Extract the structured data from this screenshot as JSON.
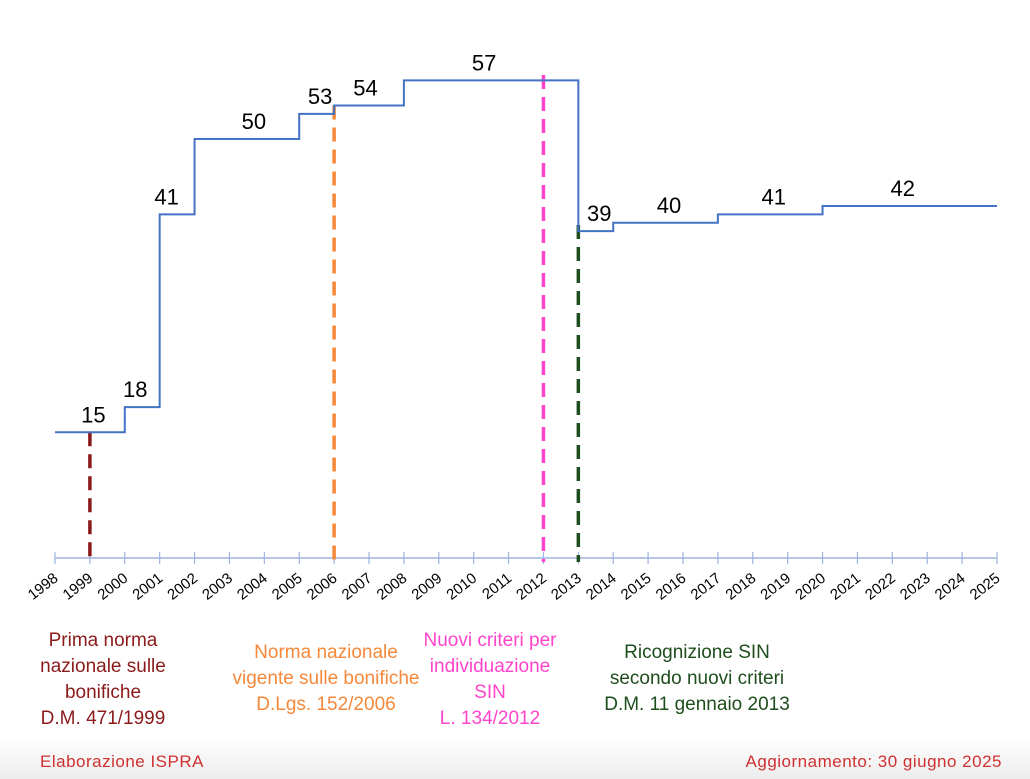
{
  "chart_data": {
    "type": "line",
    "step": true,
    "x_categories": [
      "1998",
      "1999",
      "2000",
      "2001",
      "2002",
      "2003",
      "2004",
      "2005",
      "2006",
      "2007",
      "2008",
      "2009",
      "2010",
      "2011",
      "2012",
      "2013",
      "2014",
      "2015",
      "2016",
      "2017",
      "2018",
      "2019",
      "2020",
      "2021",
      "2022",
      "2023",
      "2024",
      "2025"
    ],
    "xlim": [
      1998,
      2025
    ],
    "ylim": [
      0,
      60
    ],
    "grid": false,
    "line_color": "#4472c4",
    "steps": [
      {
        "from": 1998,
        "to": 2000,
        "value": 15,
        "label_at": 1999.1
      },
      {
        "from": 2000,
        "to": 2001,
        "value": 18,
        "label_at": 2000.3
      },
      {
        "from": 2001,
        "to": 2002,
        "value": 41,
        "label_at": 2001.2
      },
      {
        "from": 2002,
        "to": 2005,
        "value": 50,
        "label_at": 2003.7
      },
      {
        "from": 2005,
        "to": 2006,
        "value": 53,
        "label_at": 2005.6
      },
      {
        "from": 2006,
        "to": 2008,
        "value": 54,
        "label_at": 2006.9
      },
      {
        "from": 2008,
        "to": 2013,
        "value": 57,
        "label_at": 2010.3
      },
      {
        "from": 2013,
        "to": 2014,
        "value": 39,
        "label_at": 2013.6
      },
      {
        "from": 2014,
        "to": 2017,
        "value": 40,
        "label_at": 2015.6
      },
      {
        "from": 2017,
        "to": 2020,
        "value": 41,
        "label_at": 2018.6
      },
      {
        "from": 2020,
        "to": 2025,
        "value": 42,
        "label_at": 2022.3
      }
    ],
    "events": [
      {
        "year": 1999,
        "color": "#8b1a1a",
        "lines": [
          "Prima norma",
          "nazionale sulle",
          "bonifiche",
          "D.M. 471/1999"
        ]
      },
      {
        "year": 2006,
        "color": "#f5883a",
        "lines": [
          "Norma nazionale",
          "vigente sulle bonifiche",
          "D.Lgs. 152/2006"
        ]
      },
      {
        "year": 2012,
        "color": "#ff44cc",
        "lines": [
          "Nuovi criteri per",
          "individuazione",
          "SIN",
          "L. 134/2012"
        ]
      },
      {
        "year": 2013,
        "color": "#1e4d1e",
        "lines": [
          "Ricognizione SIN",
          "secondo nuovi criteri",
          "D.M. 11 gennaio 2013"
        ]
      }
    ]
  },
  "footer": {
    "source": "Elaborazione ISPRA",
    "updated": "Aggiornamento: 30 giugno 2025"
  }
}
